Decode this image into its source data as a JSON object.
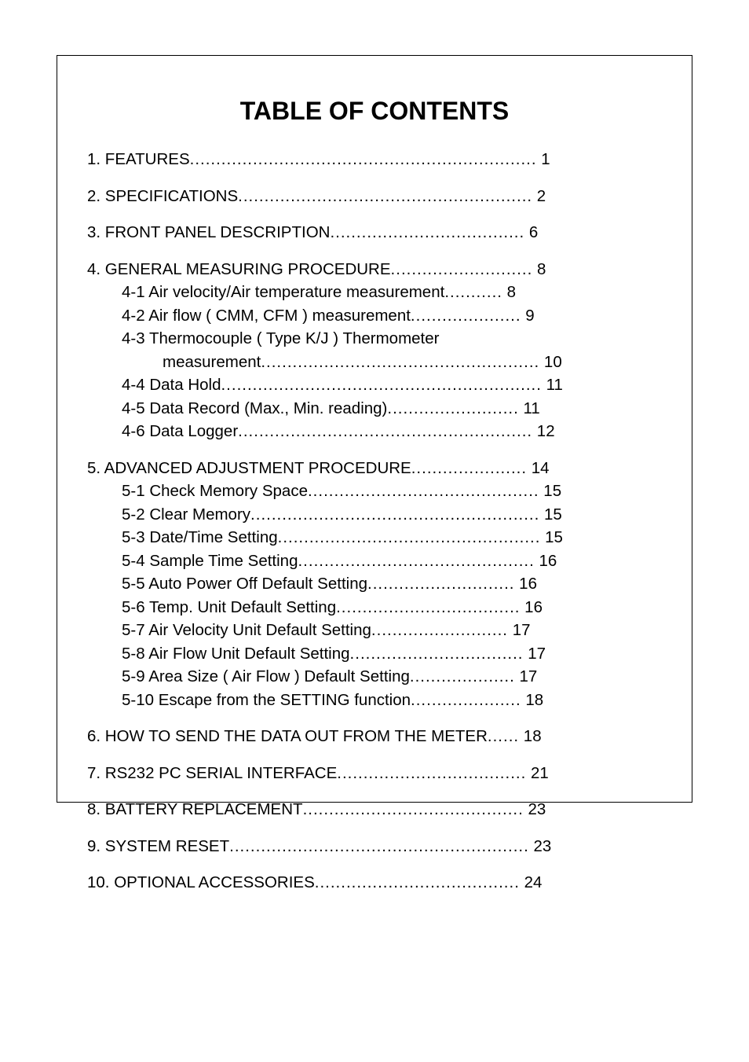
{
  "title": "TABLE OF CONTENTS",
  "entries": [
    {
      "label": "1. FEATURES",
      "page": "1",
      "indent": "main",
      "dotsWidth": 415,
      "groupEnd": true
    },
    {
      "label": "2. SPECIFICATIONS",
      "page": "2",
      "indent": "main",
      "dotsWidth": 355,
      "groupEnd": true
    },
    {
      "label": "3. FRONT PANEL DESCRIPTION",
      "page": "6",
      "indent": "main",
      "dotsWidth": 232,
      "groupEnd": true
    },
    {
      "label": "4. GENERAL MEASURING PROCEDURE",
      "page": "8",
      "indent": "main",
      "dotsWidth": 169
    },
    {
      "label": "4-1 Air velocity/Air temperature measurement",
      "page": "8",
      "indent": "sub",
      "dotsWidth": 72
    },
    {
      "label": "4-2 Air flow ( CMM, CFM ) measurement",
      "page": "9",
      "indent": "sub",
      "dotsWidth": 130
    },
    {
      "label": "4-3 Thermocouple ( Type K/J ) Thermometer",
      "page": "",
      "indent": "sub",
      "dotsWidth": 0,
      "noPage": true
    },
    {
      "label": "measurement",
      "page": "10",
      "indent": "subsub",
      "dotsWidth": 336
    },
    {
      "label": "4-4 Data Hold",
      "page": "11",
      "indent": "sub",
      "dotsWidth": 382
    },
    {
      "label": "4-5 Data Record (Max., Min. reading)",
      "page": "11",
      "indent": "sub",
      "dotsWidth": 157
    },
    {
      "label": "4-6 Data Logger",
      "page": "12",
      "indent": "sub",
      "dotsWidth": 355,
      "groupEnd": true
    },
    {
      "label": "5. ADVANCED ADJUSTMENT PROCEDURE",
      "page": "14",
      "indent": "main",
      "dotsWidth": 137
    },
    {
      "label": "5-1 Check Memory Space",
      "page": "15",
      "indent": "sub",
      "dotsWidth": 278
    },
    {
      "label": "5-2 Clear Memory",
      "page": "15",
      "indent": "sub",
      "dotsWidth": 348
    },
    {
      "label": "5-3 Date/Time Setting",
      "page": "15",
      "indent": "sub",
      "dotsWidth": 312
    },
    {
      "label": "5-4 Sample Time Setting",
      "page": "16",
      "indent": "sub",
      "dotsWidth": 284
    },
    {
      "label": "5-5 Auto Power Off Default Setting",
      "page": "16",
      "indent": "sub",
      "dotsWidth": 178
    },
    {
      "label": "5-6 Temp. Unit Default Setting",
      "page": "16",
      "indent": "sub",
      "dotsWidth": 222
    },
    {
      "label": "5-7 Air Velocity Unit Default Setting",
      "page": "17",
      "indent": "sub",
      "dotsWidth": 166
    },
    {
      "label": "5-8 Air Flow Unit Default Setting",
      "page": "17",
      "indent": "sub",
      "dotsWidth": 208
    },
    {
      "label": "5-9 Area Size ( Air Flow ) Default Setting",
      "page": "17",
      "indent": "sub",
      "dotsWidth": 126
    },
    {
      "label": "5-10 Escape from the SETTING function",
      "page": "18",
      "indent": "sub",
      "dotsWidth": 130,
      "groupEnd": true
    },
    {
      "label": "6. HOW TO SEND THE DATA OUT FROM THE METER",
      "page": "18",
      "indent": "main",
      "dotsWidth": 40,
      "groupEnd": true
    },
    {
      "label": "7. RS232 PC SERIAL INTERFACE",
      "page": "21",
      "indent": "main",
      "dotsWidth": 226,
      "groupEnd": true
    },
    {
      "label": "8. BATTERY REPLACEMENT",
      "page": "23",
      "indent": "main",
      "dotsWidth": 262,
      "groupEnd": true
    },
    {
      "label": "9. SYSTEM RESET",
      "page": "23",
      "indent": "main",
      "dotsWidth": 360,
      "groupEnd": true
    },
    {
      "label": "10. OPTIONAL ACCESSORIES",
      "page": "24",
      "indent": "main",
      "dotsWidth": 248,
      "groupEnd": true
    }
  ],
  "colors": {
    "text": "#000000",
    "background": "#ffffff",
    "border": "#000000"
  },
  "fontSizes": {
    "title": 32,
    "body": 20.5
  }
}
